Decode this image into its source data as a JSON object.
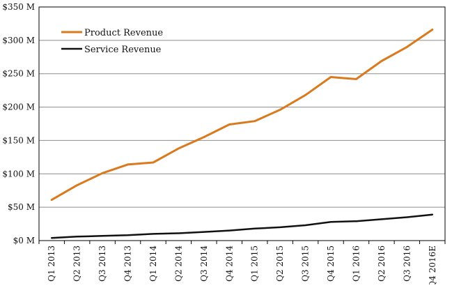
{
  "chart_data": {
    "type": "line",
    "title": "",
    "xlabel": "",
    "ylabel": "",
    "categories": [
      "Q1 2013",
      "Q2 2013",
      "Q3 2013",
      "Q4 2013",
      "Q1 2014",
      "Q2 2014",
      "Q3 2014",
      "Q4 2014",
      "Q1 2015",
      "Q2 2015",
      "Q3 2015",
      "Q4 2015",
      "Q1 2016",
      "Q2 2016",
      "Q3 2016",
      "Q4 2016E"
    ],
    "y_ticks": [
      "$0 M",
      "$50 M",
      "$100 M",
      "$150 M",
      "$200 M",
      "$250 M",
      "$300 M",
      "$350 M"
    ],
    "ylim": [
      0,
      350
    ],
    "grid": "horizontal",
    "legend_position": "top-left",
    "series": [
      {
        "name": "Product Revenue",
        "color": "#D97A1F",
        "values": [
          61,
          83,
          101,
          114,
          117,
          138,
          155,
          174,
          179,
          196,
          218,
          245,
          242,
          269,
          290,
          316
        ]
      },
      {
        "name": "Service Revenue",
        "color": "#111111",
        "values": [
          4,
          6,
          7,
          8,
          10,
          11,
          13,
          15,
          18,
          20,
          23,
          28,
          29,
          32,
          35,
          39
        ]
      }
    ]
  }
}
